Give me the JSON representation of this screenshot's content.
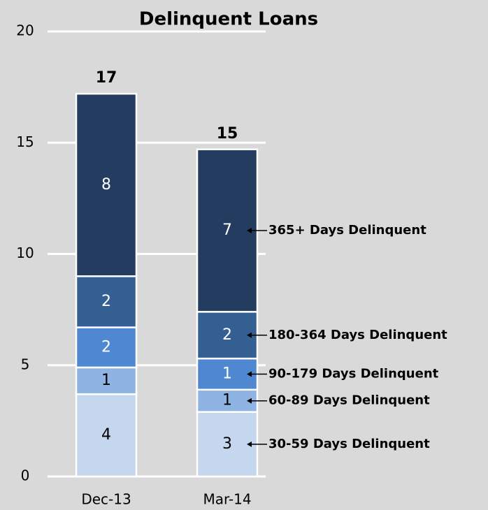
{
  "chart_data": {
    "type": "stacked_bar",
    "title": "Delinquent Loans",
    "categories": [
      "Dec-13",
      "Mar-14"
    ],
    "series": [
      {
        "name": "30-59 Days Delinquent",
        "color": "#c5d7ef",
        "values": [
          3.7,
          2.9
        ],
        "value_labels": [
          "4",
          "3"
        ]
      },
      {
        "name": "60-89 Days Delinquent",
        "color": "#8fb3e3",
        "values": [
          1.2,
          1.0
        ],
        "value_labels": [
          "1",
          "1"
        ]
      },
      {
        "name": "90-179 Days Delinquent",
        "color": "#4f87d0",
        "values": [
          1.8,
          1.4
        ],
        "value_labels": [
          "2",
          "1"
        ]
      },
      {
        "name": "180-364 Days Delinquent",
        "color": "#345f93",
        "values": [
          2.3,
          2.1
        ],
        "value_labels": [
          "2",
          "2"
        ]
      },
      {
        "name": "365+ Days Delinquent",
        "color": "#233c5f",
        "values": [
          8.2,
          7.3
        ],
        "value_labels": [
          "8",
          "7"
        ]
      }
    ],
    "totals": [
      17.2,
      14.7
    ],
    "total_labels": [
      "17",
      "15"
    ],
    "ylim": [
      0,
      20
    ],
    "yticks": [
      0,
      5,
      10,
      15,
      20
    ],
    "grid": true
  }
}
